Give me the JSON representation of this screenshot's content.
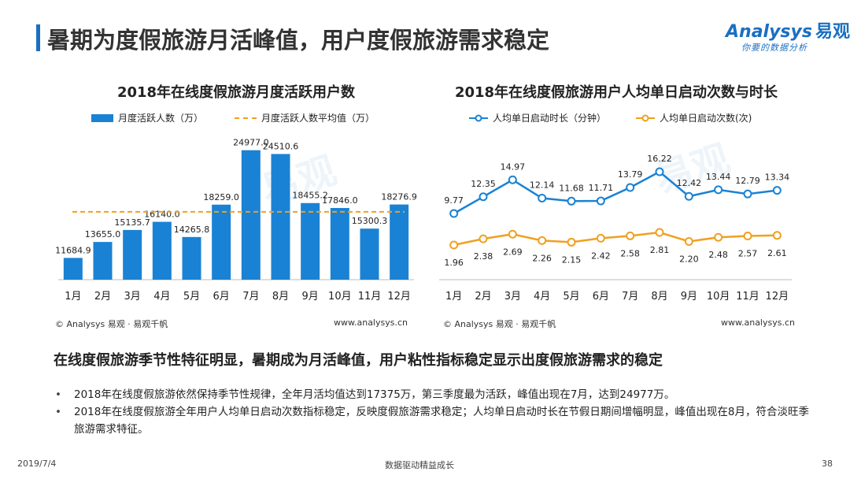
{
  "header": {
    "title": "暑期为度假旅游月活峰值，用户度假旅游需求稳定",
    "logo_main": "Analysys",
    "logo_cn": "易观",
    "logo_sub": "你要的数据分析"
  },
  "watermarks": {
    "left": "易观",
    "right": "易观"
  },
  "left_chart": {
    "title": "2018年在线度假旅游月度活跃用户数",
    "legend_bar": "月度活跃人数（万）",
    "legend_line": "月度活跃人数平均值（万）",
    "source_left": "© Analysys 易观 · 易观千帆",
    "source_right": "www.analysys.cn"
  },
  "right_chart": {
    "title": "2018年在线度假旅游用户人均单日启动次数与时长",
    "legend_s1": "人均单日启动时长（分钟）",
    "legend_s2": "人均单日启动次数(次)",
    "source_left": "© Analysys 易观 · 易观千帆",
    "source_right": "www.analysys.cn"
  },
  "chart_data": [
    {
      "type": "bar",
      "title": "2018年在线度假旅游月度活跃用户数",
      "categories": [
        "1月",
        "2月",
        "3月",
        "4月",
        "5月",
        "6月",
        "7月",
        "8月",
        "9月",
        "10月",
        "11月",
        "12月"
      ],
      "series": [
        {
          "name": "月度活跃人数（万）",
          "values": [
            11684.9,
            13655.0,
            15135.7,
            16140.0,
            14265.8,
            18259.0,
            24977.0,
            24510.6,
            18455.2,
            17846.0,
            15300.3,
            18276.9
          ],
          "color": "#1a82d4"
        }
      ],
      "reference_line": {
        "name": "月度活跃人数平均值（万）",
        "value": 17375,
        "color": "#f0a020"
      },
      "value_labels": [
        "11684.9",
        "13655.0",
        "15135.7",
        "16140.0",
        "14265.8",
        "18259.0",
        "24977.0",
        "24510.6",
        "18455.2",
        "17846.0",
        "15300.3",
        "18276.9"
      ],
      "ylim": [
        9000,
        26500
      ],
      "grid": false,
      "legend_position": "top"
    },
    {
      "type": "line",
      "title": "2018年在线度假旅游用户人均单日启动次数与时长",
      "categories": [
        "1月",
        "2月",
        "3月",
        "4月",
        "5月",
        "6月",
        "7月",
        "8月",
        "9月",
        "10月",
        "11月",
        "12月"
      ],
      "series": [
        {
          "name": "人均单日启动时长（分钟）",
          "values": [
            9.77,
            12.35,
            14.97,
            12.14,
            11.68,
            11.71,
            13.79,
            16.22,
            12.42,
            13.44,
            12.79,
            13.34
          ],
          "labels": [
            "9.77",
            "12.35",
            "14.97",
            "12.14",
            "11.68",
            "11.71",
            "13.79",
            "16.22",
            "12.42",
            "13.44",
            "12.79",
            "13.34"
          ],
          "color": "#1a82d4"
        },
        {
          "name": "人均单日启动次数(次)",
          "values": [
            1.96,
            2.38,
            2.69,
            2.26,
            2.15,
            2.42,
            2.58,
            2.81,
            2.2,
            2.48,
            2.57,
            2.61
          ],
          "labels": [
            "1.96",
            "2.38",
            "2.69",
            "2.26",
            "2.15",
            "2.42",
            "2.58",
            "2.81",
            "2.20",
            "2.48",
            "2.57",
            "2.61"
          ],
          "color": "#f0a020"
        }
      ],
      "grid": false,
      "legend_position": "top"
    }
  ],
  "summary": {
    "heading": "在线度假旅游季节性特征明显，暑期成为月活峰值，用户粘性指标稳定显示出度假旅游需求的稳定",
    "bullets": [
      "2018年在线度假旅游依然保持季节性规律，全年月活均值达到17375万，第三季度最为活跃，峰值出现在7月，达到24977万。",
      "2018年在线度假旅游全年用户人均单日启动次数指标稳定，反映度假旅游需求稳定；人均单日启动时长在节假日期间增幅明显，峰值出现在8月，符合淡旺季旅游需求特征。"
    ]
  },
  "footer": {
    "date": "2019/7/4",
    "center": "数据驱动精益成长",
    "page": "38"
  }
}
